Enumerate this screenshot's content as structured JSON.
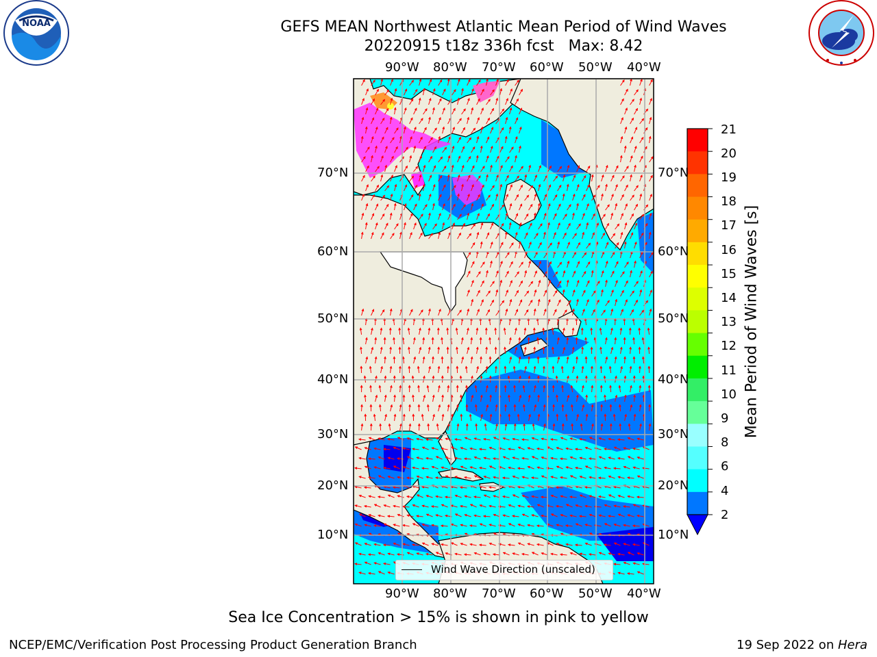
{
  "header": {
    "title": "GEFS MEAN Northwest Atlantic Mean Period of Wind Waves",
    "subtitle": "20220915 t18z 336h fcst   Max: 8.42"
  },
  "logos": {
    "left": {
      "name": "NOAA",
      "ring_text": "NATIONAL OCEANIC AND ATMOSPHERIC ADMINISTRATION · U.S. DEPARTMENT OF COMMERCE"
    },
    "right": {
      "name": "National Weather Service",
      "ring_text": "NATIONAL WEATHER SERVICE"
    }
  },
  "map": {
    "lon_ticks": [
      "90°W",
      "80°W",
      "70°W",
      "60°W",
      "50°W",
      "40°W"
    ],
    "lat_ticks": [
      "70°N",
      "60°N",
      "50°N",
      "40°N",
      "30°N",
      "20°N",
      "10°N"
    ],
    "legend": "Wind Wave Direction (unscaled)",
    "arrow_color": "#ff0000",
    "land_color": "#efedde",
    "ice_colors": [
      "#ff33ff",
      "#ff9933",
      "#ffff33"
    ]
  },
  "colorbar": {
    "label": "Mean Period of Wind Waves [s]",
    "ticks": [
      "21",
      "20",
      "19",
      "18",
      "17",
      "16",
      "15",
      "14",
      "13",
      "12",
      "11",
      "10",
      "9",
      "8",
      "6",
      "4",
      "2"
    ],
    "colors": [
      "#ff0000",
      "#ff3300",
      "#ff6600",
      "#ff8800",
      "#ffaa00",
      "#ffdd00",
      "#ffff00",
      "#ddff00",
      "#bbff00",
      "#66ff00",
      "#00ee00",
      "#33ee66",
      "#66ff99",
      "#99ffff",
      "#55ffff",
      "#00ffff",
      "#0077ff"
    ],
    "under_color": "#0000ff"
  },
  "caption": "Sea Ice Concentration > 15% is shown in pink to yellow",
  "footer": {
    "left": "NCEP/EMC/Verification Post Processing Product Generation Branch",
    "right_prefix": "19 Sep 2022 on ",
    "right_host": "Hera"
  }
}
